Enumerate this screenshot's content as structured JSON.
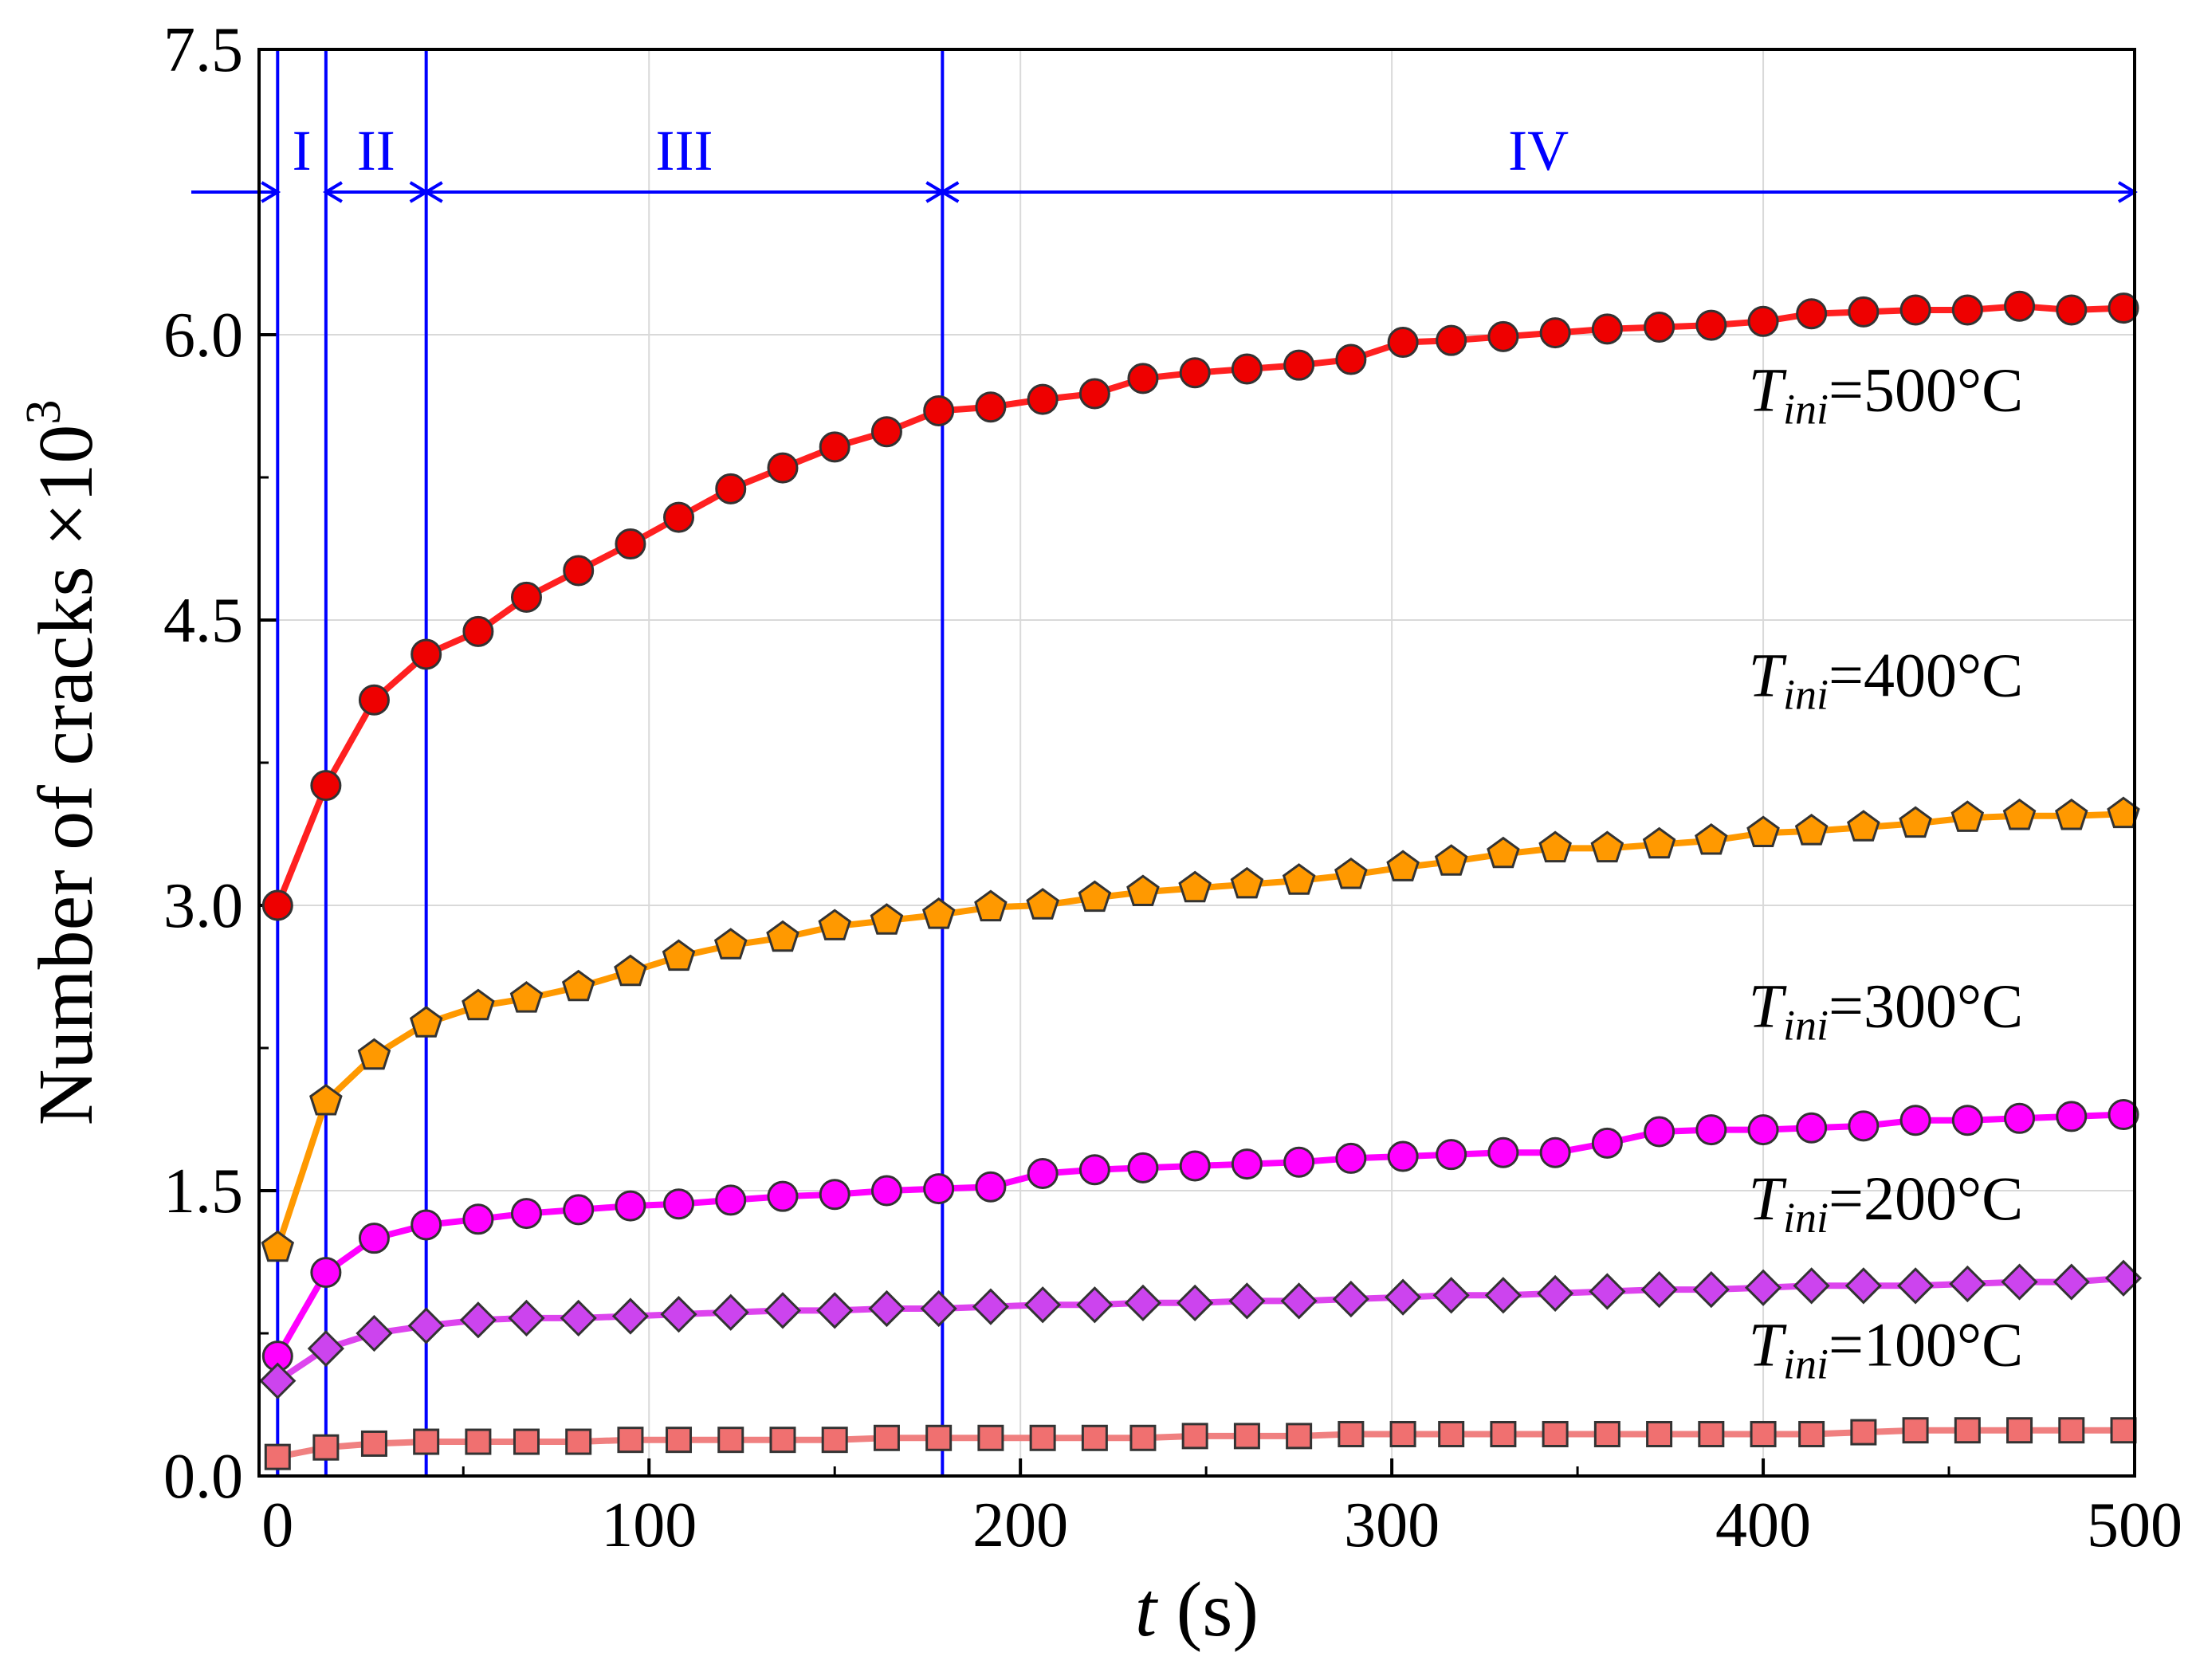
{
  "chart_data": {
    "type": "line",
    "title": "",
    "xlabel": {
      "var": "t",
      "unit": " (s)"
    },
    "ylabel": {
      "main": "Number of cracks ×10",
      "sup": "3"
    },
    "xlim": [
      -5,
      500
    ],
    "ylim": [
      0,
      7.5
    ],
    "xticks": [
      0,
      100,
      200,
      300,
      400,
      500
    ],
    "xtick_labels": [
      "0",
      "100",
      "200",
      "300",
      "400",
      "500"
    ],
    "yticks": [
      0,
      1.5,
      3,
      4.5,
      6,
      7.5
    ],
    "ytick_labels": [
      "0.0",
      "1.5",
      "3.0",
      "4.5",
      "6.0",
      "7.5"
    ],
    "grid": true,
    "phases": {
      "boundaries": [
        0,
        13,
        40,
        179
      ],
      "labels": [
        "I",
        "II",
        "III",
        "IV"
      ],
      "arrow_y": 6.75,
      "line_color": "#0000ff"
    },
    "series": [
      {
        "name": "T_ini=500°C",
        "label": {
          "T": "T",
          "sub": "ini",
          "rest": "=500°C"
        },
        "label_pos": [
          470,
          5.6
        ],
        "line_color": "#ff2020",
        "marker_color": "#ee0000",
        "marker": "circle",
        "x": [
          0,
          13,
          26,
          40,
          54,
          67,
          81,
          95,
          108,
          122,
          136,
          150,
          164,
          178,
          192,
          206,
          220,
          233,
          247,
          261,
          275,
          289,
          303,
          316,
          330,
          344,
          358,
          372,
          386,
          400,
          413,
          427,
          441,
          455,
          469,
          483,
          497
        ],
        "values": [
          3.0,
          3.63,
          4.08,
          4.32,
          4.44,
          4.62,
          4.76,
          4.9,
          5.04,
          5.19,
          5.3,
          5.41,
          5.49,
          5.6,
          5.62,
          5.66,
          5.69,
          5.77,
          5.8,
          5.82,
          5.84,
          5.87,
          5.96,
          5.97,
          5.99,
          6.01,
          6.03,
          6.04,
          6.05,
          6.07,
          6.11,
          6.12,
          6.13,
          6.13,
          6.15,
          6.13,
          6.14
        ]
      },
      {
        "name": "T_ini=400°C",
        "label": {
          "T": "T",
          "sub": "ini",
          "rest": "=400°C"
        },
        "label_pos": [
          470,
          4.1
        ],
        "line_color": "#ff9900",
        "marker_color": "#ff9900",
        "marker": "pentagon",
        "x": [
          0,
          13,
          26,
          40,
          54,
          67,
          81,
          95,
          108,
          122,
          136,
          150,
          164,
          178,
          192,
          206,
          220,
          233,
          247,
          261,
          275,
          289,
          303,
          316,
          330,
          344,
          358,
          372,
          386,
          400,
          413,
          427,
          441,
          455,
          469,
          483,
          497
        ],
        "values": [
          1.2,
          1.97,
          2.21,
          2.38,
          2.47,
          2.51,
          2.57,
          2.65,
          2.73,
          2.79,
          2.83,
          2.89,
          2.92,
          2.95,
          2.99,
          3.0,
          3.04,
          3.07,
          3.09,
          3.11,
          3.13,
          3.16,
          3.2,
          3.23,
          3.27,
          3.3,
          3.3,
          3.32,
          3.34,
          3.38,
          3.39,
          3.41,
          3.43,
          3.46,
          3.47,
          3.47,
          3.48
        ]
      },
      {
        "name": "T_ini=300°C",
        "label": {
          "T": "T",
          "sub": "ini",
          "rest": "=300°C"
        },
        "label_pos": [
          470,
          2.36
        ],
        "line_color": "#ff00ff",
        "marker_color": "#ff00ff",
        "marker": "circle",
        "x": [
          0,
          13,
          26,
          40,
          54,
          67,
          81,
          95,
          108,
          122,
          136,
          150,
          164,
          178,
          192,
          206,
          220,
          233,
          247,
          261,
          275,
          289,
          303,
          316,
          330,
          344,
          358,
          372,
          386,
          400,
          413,
          427,
          441,
          455,
          469,
          483,
          497
        ],
        "values": [
          0.63,
          1.07,
          1.25,
          1.32,
          1.35,
          1.38,
          1.4,
          1.42,
          1.43,
          1.45,
          1.47,
          1.48,
          1.5,
          1.51,
          1.52,
          1.59,
          1.61,
          1.62,
          1.63,
          1.64,
          1.65,
          1.67,
          1.68,
          1.69,
          1.7,
          1.7,
          1.75,
          1.81,
          1.82,
          1.82,
          1.83,
          1.84,
          1.87,
          1.87,
          1.88,
          1.89,
          1.9
        ]
      },
      {
        "name": "T_ini=200°C",
        "label": {
          "T": "T",
          "sub": "ini",
          "rest": "=200°C"
        },
        "label_pos": [
          470,
          1.35
        ],
        "line_color": "#dd44ee",
        "marker_color": "#cc44ee",
        "marker": "diamond",
        "x": [
          0,
          13,
          26,
          40,
          54,
          67,
          81,
          95,
          108,
          122,
          136,
          150,
          164,
          178,
          192,
          206,
          220,
          233,
          247,
          261,
          275,
          289,
          303,
          316,
          330,
          344,
          358,
          372,
          386,
          400,
          413,
          427,
          441,
          455,
          469,
          483,
          497
        ],
        "values": [
          0.5,
          0.67,
          0.75,
          0.79,
          0.82,
          0.83,
          0.83,
          0.84,
          0.85,
          0.86,
          0.87,
          0.87,
          0.88,
          0.88,
          0.89,
          0.9,
          0.9,
          0.91,
          0.91,
          0.92,
          0.92,
          0.93,
          0.94,
          0.95,
          0.95,
          0.96,
          0.97,
          0.98,
          0.98,
          0.99,
          1.0,
          1.0,
          1.0,
          1.01,
          1.02,
          1.02,
          1.04
        ]
      },
      {
        "name": "T_ini=100°C",
        "label": {
          "T": "T",
          "sub": "ini",
          "rest": "=100°C"
        },
        "label_pos": [
          470,
          0.58
        ],
        "line_color": "#f08080",
        "marker_color": "#f07070",
        "marker": "square",
        "x": [
          0,
          13,
          26,
          40,
          54,
          67,
          81,
          95,
          108,
          122,
          136,
          150,
          164,
          178,
          192,
          206,
          220,
          233,
          247,
          261,
          275,
          289,
          303,
          316,
          330,
          344,
          358,
          372,
          386,
          400,
          413,
          427,
          441,
          455,
          469,
          483,
          497
        ],
        "values": [
          0.1,
          0.15,
          0.17,
          0.18,
          0.18,
          0.18,
          0.18,
          0.19,
          0.19,
          0.19,
          0.19,
          0.19,
          0.2,
          0.2,
          0.2,
          0.2,
          0.2,
          0.2,
          0.21,
          0.21,
          0.21,
          0.22,
          0.22,
          0.22,
          0.22,
          0.22,
          0.22,
          0.22,
          0.22,
          0.22,
          0.22,
          0.23,
          0.24,
          0.24,
          0.24,
          0.24,
          0.24
        ]
      }
    ]
  }
}
